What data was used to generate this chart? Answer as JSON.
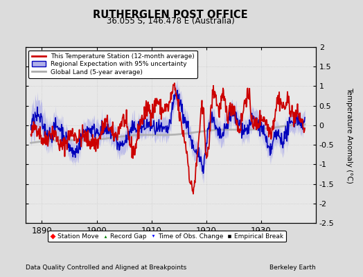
{
  "title": "RUTHERGLEN POST OFFICE",
  "subtitle": "36.055 S, 146.478 E (Australia)",
  "ylabel": "Temperature Anomaly (°C)",
  "xlabel_left": "Data Quality Controlled and Aligned at Breakpoints",
  "xlabel_right": "Berkeley Earth",
  "xlim": [
    1887,
    1940
  ],
  "ylim": [
    -2.5,
    2.0
  ],
  "yticks": [
    -2.5,
    -2.0,
    -1.5,
    -1.0,
    -0.5,
    0,
    0.5,
    1.0,
    1.5,
    2.0
  ],
  "xticks": [
    1890,
    1900,
    1910,
    1920,
    1930
  ],
  "bg_color": "#dcdcdc",
  "plot_bg_color": "#e8e8e8",
  "red_color": "#cc0000",
  "blue_color": "#0000bb",
  "fill_color": "#b0b0e8",
  "gray_color": "#aaaaaa",
  "legend1_items": [
    "This Temperature Station (12-month average)",
    "Regional Expectation with 95% uncertainty",
    "Global Land (5-year average)"
  ],
  "legend2_items": [
    "Station Move",
    "Record Gap",
    "Time of Obs. Change",
    "Empirical Break"
  ],
  "seed": 42
}
